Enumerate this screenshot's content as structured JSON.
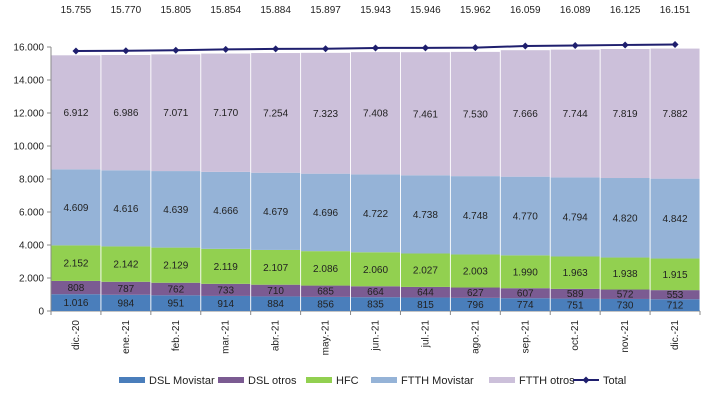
{
  "chart_data": {
    "type": "bar",
    "stacked": true,
    "categories": [
      "dic.-20",
      "ene.-21",
      "feb.-21",
      "mar.-21",
      "abr.-21",
      "may.-21",
      "jun.-21",
      "jul.-21",
      "ago.-21",
      "sep.-21",
      "oct.-21",
      "nov.-21",
      "dic.-21"
    ],
    "ylim": [
      0,
      16000
    ],
    "yticks": [
      "0",
      "2.000",
      "4.000",
      "6.000",
      "8.000",
      "10.000",
      "12.000",
      "14.000",
      "16.000"
    ],
    "ytick_values": [
      0,
      2000,
      4000,
      6000,
      8000,
      10000,
      12000,
      14000,
      16000
    ],
    "series": [
      {
        "name": "DSL Movistar",
        "color": "#4a7ebb",
        "values": [
          1016,
          984,
          951,
          914,
          884,
          856,
          835,
          815,
          796,
          774,
          751,
          730,
          712
        ],
        "labels": [
          "1.016",
          "984",
          "951",
          "914",
          "884",
          "856",
          "835",
          "815",
          "796",
          "774",
          "751",
          "730",
          "712"
        ]
      },
      {
        "name": "DSL otros",
        "color": "#7b5b92",
        "values": [
          808,
          787,
          762,
          733,
          710,
          685,
          664,
          644,
          627,
          607,
          589,
          572,
          553
        ],
        "labels": [
          "808",
          "787",
          "762",
          "733",
          "710",
          "685",
          "664",
          "644",
          "627",
          "607",
          "589",
          "572",
          "553"
        ]
      },
      {
        "name": "HFC",
        "color": "#92d050",
        "values": [
          2152,
          2142,
          2129,
          2119,
          2107,
          2086,
          2060,
          2027,
          2003,
          1990,
          1963,
          1938,
          1915
        ],
        "labels": [
          "2.152",
          "2.142",
          "2.129",
          "2.119",
          "2.107",
          "2.086",
          "2.060",
          "2.027",
          "2.003",
          "1.990",
          "1.963",
          "1.938",
          "1.915"
        ]
      },
      {
        "name": "FTTH Movistar",
        "color": "#95b3d7",
        "values": [
          4609,
          4616,
          4639,
          4666,
          4679,
          4696,
          4722,
          4738,
          4748,
          4770,
          4794,
          4820,
          4842
        ],
        "labels": [
          "4.609",
          "4.616",
          "4.639",
          "4.666",
          "4.679",
          "4.696",
          "4.722",
          "4.738",
          "4.748",
          "4.770",
          "4.794",
          "4.820",
          "4.842"
        ]
      },
      {
        "name": "FTTH otros",
        "color": "#ccc0da",
        "values": [
          6912,
          6986,
          7071,
          7170,
          7254,
          7323,
          7408,
          7461,
          7530,
          7666,
          7744,
          7819,
          7882
        ],
        "labels": [
          "6.912",
          "6.986",
          "7.071",
          "7.170",
          "7.254",
          "7.323",
          "7.408",
          "7.461",
          "7.530",
          "7.666",
          "7.744",
          "7.819",
          "7.882"
        ]
      }
    ],
    "total": {
      "name": "Total",
      "type": "line",
      "color": "#1f1f6e",
      "values": [
        15755,
        15770,
        15805,
        15854,
        15884,
        15897,
        15943,
        15946,
        15962,
        16059,
        16089,
        16125,
        16151
      ],
      "labels": [
        "15.755",
        "15.770",
        "15.805",
        "15.854",
        "15.884",
        "15.897",
        "15.943",
        "15.946",
        "15.962",
        "16.059",
        "16.089",
        "16.125",
        "16.151"
      ]
    },
    "legend": "bottom",
    "grid": false
  }
}
